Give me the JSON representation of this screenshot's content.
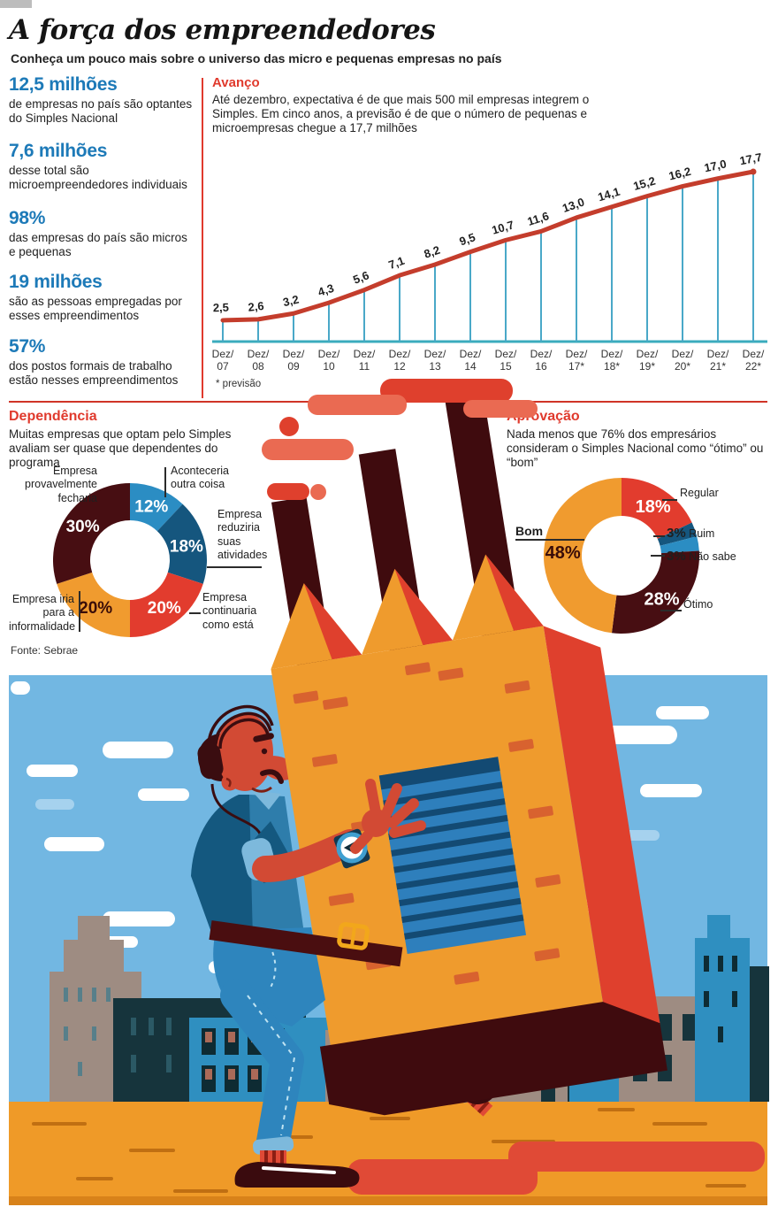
{
  "header": {
    "title": "A força dos empreendedores",
    "subtitle": "Conheça um pouco mais sobre o universo das micro e pequenas empresas no país"
  },
  "stats": [
    {
      "value": "12,5 milhões",
      "desc": "de empresas no país são optantes do Simples Nacional"
    },
    {
      "value": "7,6 milhões",
      "desc": "desse total são microempreendedores individuais"
    },
    {
      "value": "98%",
      "desc": "das empresas do país são micros e pequenas"
    },
    {
      "value": "19 milhões",
      "desc": "são as pessoas empregadas por esses empreendimentos"
    },
    {
      "value": "57%",
      "desc": "dos postos formais de trabalho estão nesses empreendimentos"
    }
  ],
  "source": "Fonte: Sebrae",
  "colors": {
    "accent_red": "#e03a2d",
    "stat_blue": "#1d7ab8",
    "line_red": "#c43d2c",
    "axis_teal": "#3aabbd",
    "drop_teal": "#49a8c8",
    "donut_light_blue": "#2b8dc3",
    "donut_dark_blue": "#15567e",
    "donut_red": "#e23c2e",
    "donut_orange": "#f09b2f",
    "donut_maroon": "#470e12"
  },
  "chart_data": [
    {
      "type": "line",
      "section": "Avanço",
      "description": "Até dezembro, expectativa é de que mais 500 mil empresas integrem o Simples. Em cinco anos, a previsão é de que o número de pequenas e microempresas chegue a 17,7 milhões",
      "x": [
        "Dez/07",
        "Dez/08",
        "Dez/09",
        "Dez/10",
        "Dez/11",
        "Dez/12",
        "Dez/13",
        "Dez/14",
        "Dez/15",
        "Dez/16",
        "Dez/17*",
        "Dez/18*",
        "Dez/19*",
        "Dez/20*",
        "Dez/21*",
        "Dez/22*"
      ],
      "values": [
        2.5,
        2.6,
        3.2,
        4.3,
        5.6,
        7.1,
        8.2,
        9.5,
        10.7,
        11.6,
        13.0,
        14.1,
        15.2,
        16.2,
        17.0,
        17.7
      ],
      "point_labels": [
        "2,5",
        "2,6",
        "3,2",
        "4,3",
        "5,6",
        "7,1",
        "8,2",
        "9,5",
        "10,7",
        "11,6",
        "13,0",
        "14,1",
        "15,2",
        "16,2",
        "17,0",
        "17,7"
      ],
      "footnote": "* previsão",
      "ylim": [
        0,
        18
      ],
      "legend": "none",
      "grid": false
    },
    {
      "type": "pie",
      "section": "Dependência",
      "description": "Muitas empresas que optam pelo Simples avaliam ser quase que dependentes do programa",
      "segments": [
        {
          "label": "Aconteceria outra coisa",
          "pct": 12,
          "pct_label": "12%",
          "color": "#2b8dc3",
          "text_color": "#ffffff",
          "show_inside": true
        },
        {
          "label": "Empresa reduziria suas atividades",
          "pct": 18,
          "pct_label": "18%",
          "color": "#15567e",
          "text_color": "#ffffff",
          "show_inside": true
        },
        {
          "label": "Empresa continuaria como está",
          "pct": 20,
          "pct_label": "20%",
          "color": "#e23c2e",
          "text_color": "#ffffff",
          "show_inside": true
        },
        {
          "label": "Empresa iria para a informalidade",
          "pct": 20,
          "pct_label": "20%",
          "color": "#f09b2f",
          "text_color": "#3a0d08",
          "show_inside": true
        },
        {
          "label": "Empresa provavelmente fecharia",
          "pct": 30,
          "pct_label": "30%",
          "color": "#470e12",
          "text_color": "#ffffff",
          "show_inside": true
        }
      ]
    },
    {
      "type": "pie",
      "section": "Aprovação",
      "description": "Nada menos que 76% dos empresários consideram o Simples Nacional como “ótimo” ou “bom”",
      "segments": [
        {
          "label": "Regular",
          "pct": 18,
          "pct_label": "18%",
          "color": "#e23c2e",
          "text_color": "#ffffff",
          "show_inside": true
        },
        {
          "label": "Ruim",
          "pct": 3,
          "pct_label": "3%",
          "color": "#15567e",
          "show_inside": false
        },
        {
          "label": "Não sabe",
          "pct": 3,
          "pct_label": "3%",
          "color": "#2b8dc3",
          "show_inside": false
        },
        {
          "label": "Ótimo",
          "pct": 28,
          "pct_label": "28%",
          "color": "#470e12",
          "text_color": "#ffffff",
          "show_inside": true
        },
        {
          "label": "Bom",
          "pct": 48,
          "pct_label": "48%",
          "color": "#f09b2f",
          "text_color": "#3a0d08",
          "show_inside": true
        }
      ]
    }
  ]
}
